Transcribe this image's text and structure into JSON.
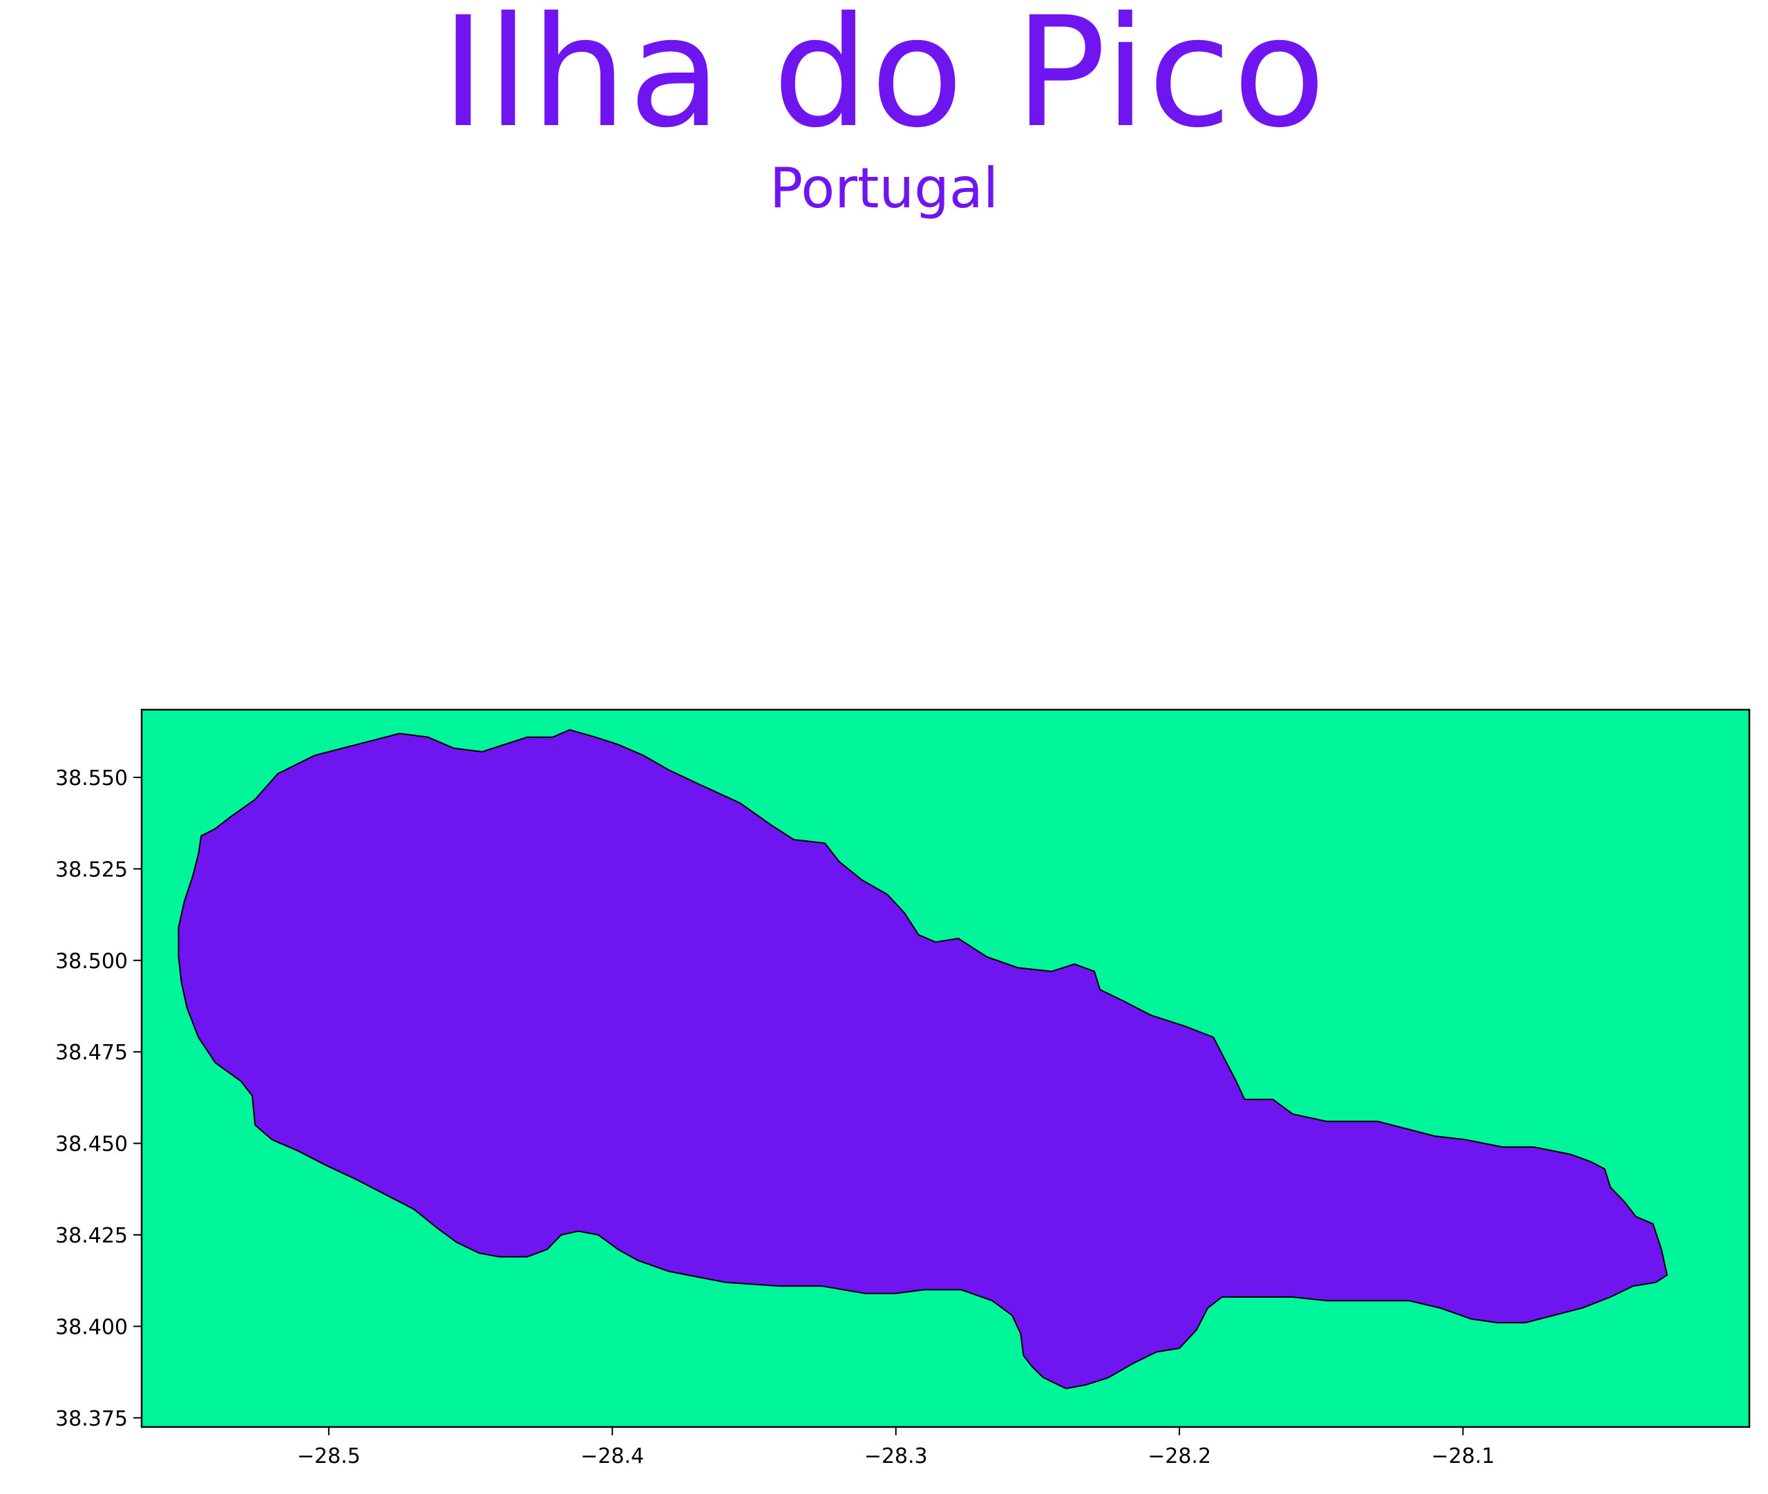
{
  "title": "Ilha do Pico",
  "subtitle": "Portugal",
  "colors": {
    "accent": "#6F16F0",
    "sea": "#00F59B",
    "land": "#6F16F0",
    "outline": "#000000"
  },
  "map": {
    "xlim": [
      -28.566,
      -27.999
    ],
    "ylim": [
      38.3725,
      38.5685
    ],
    "x_ticks": [
      {
        "value": -28.5,
        "label": "−28.5"
      },
      {
        "value": -28.4,
        "label": "−28.4"
      },
      {
        "value": -28.3,
        "label": "−28.3"
      },
      {
        "value": -28.2,
        "label": "−28.2"
      },
      {
        "value": -28.1,
        "label": "−28.1"
      }
    ],
    "y_ticks": [
      {
        "value": 38.55,
        "label": "38.550"
      },
      {
        "value": 38.525,
        "label": "38.525"
      },
      {
        "value": 38.5,
        "label": "38.500"
      },
      {
        "value": 38.475,
        "label": "38.475"
      },
      {
        "value": 38.45,
        "label": "38.450"
      },
      {
        "value": 38.425,
        "label": "38.425"
      },
      {
        "value": 38.4,
        "label": "38.400"
      },
      {
        "value": 38.375,
        "label": "38.375"
      }
    ],
    "island_outline": [
      [
        -28.54,
        38.536
      ],
      [
        -28.535,
        38.539
      ],
      [
        -28.526,
        38.544
      ],
      [
        -28.518,
        38.551
      ],
      [
        -28.505,
        38.556
      ],
      [
        -28.49,
        38.559
      ],
      [
        -28.475,
        38.562
      ],
      [
        -28.465,
        38.561
      ],
      [
        -28.456,
        38.558
      ],
      [
        -28.446,
        38.557
      ],
      [
        -28.438,
        38.559
      ],
      [
        -28.43,
        38.561
      ],
      [
        -28.421,
        38.561
      ],
      [
        -28.415,
        38.563
      ],
      [
        -28.406,
        38.561
      ],
      [
        -28.398,
        38.559
      ],
      [
        -28.389,
        38.556
      ],
      [
        -28.38,
        38.552
      ],
      [
        -28.369,
        38.548
      ],
      [
        -28.355,
        38.543
      ],
      [
        -28.344,
        38.537
      ],
      [
        -28.336,
        38.533
      ],
      [
        -28.325,
        38.532
      ],
      [
        -28.32,
        38.527
      ],
      [
        -28.312,
        38.522
      ],
      [
        -28.303,
        38.518
      ],
      [
        -28.297,
        38.513
      ],
      [
        -28.292,
        38.507
      ],
      [
        -28.286,
        38.505
      ],
      [
        -28.278,
        38.506
      ],
      [
        -28.268,
        38.501
      ],
      [
        -28.257,
        38.498
      ],
      [
        -28.245,
        38.497
      ],
      [
        -28.237,
        38.499
      ],
      [
        -28.23,
        38.497
      ],
      [
        -28.228,
        38.492
      ],
      [
        -28.22,
        38.489
      ],
      [
        -28.21,
        38.485
      ],
      [
        -28.198,
        38.482
      ],
      [
        -28.188,
        38.479
      ],
      [
        -28.184,
        38.473
      ],
      [
        -28.18,
        38.467
      ],
      [
        -28.177,
        38.462
      ],
      [
        -28.167,
        38.462
      ],
      [
        -28.16,
        38.458
      ],
      [
        -28.148,
        38.456
      ],
      [
        -28.14,
        38.456
      ],
      [
        -28.13,
        38.456
      ],
      [
        -28.12,
        38.454
      ],
      [
        -28.11,
        38.452
      ],
      [
        -28.099,
        38.451
      ],
      [
        -28.086,
        38.449
      ],
      [
        -28.075,
        38.449
      ],
      [
        -28.062,
        38.447
      ],
      [
        -28.055,
        38.445
      ],
      [
        -28.05,
        38.443
      ],
      [
        -28.048,
        38.438
      ],
      [
        -28.043,
        38.434
      ],
      [
        -28.039,
        38.43
      ],
      [
        -28.033,
        38.428
      ],
      [
        -28.03,
        38.421
      ],
      [
        -28.028,
        38.414
      ],
      [
        -28.032,
        38.412
      ],
      [
        -28.04,
        38.411
      ],
      [
        -28.048,
        38.408
      ],
      [
        -28.058,
        38.405
      ],
      [
        -28.068,
        38.403
      ],
      [
        -28.078,
        38.401
      ],
      [
        -28.088,
        38.401
      ],
      [
        -28.097,
        38.402
      ],
      [
        -28.108,
        38.405
      ],
      [
        -28.119,
        38.407
      ],
      [
        -28.134,
        38.407
      ],
      [
        -28.148,
        38.407
      ],
      [
        -28.16,
        38.408
      ],
      [
        -28.175,
        38.408
      ],
      [
        -28.185,
        38.408
      ],
      [
        -28.19,
        38.405
      ],
      [
        -28.194,
        38.399
      ],
      [
        -28.2,
        38.394
      ],
      [
        -28.208,
        38.393
      ],
      [
        -28.216,
        38.39
      ],
      [
        -28.225,
        38.386
      ],
      [
        -28.233,
        38.384
      ],
      [
        -28.24,
        38.383
      ],
      [
        -28.248,
        38.386
      ],
      [
        -28.252,
        38.389
      ],
      [
        -28.255,
        38.392
      ],
      [
        -28.256,
        38.398
      ],
      [
        -28.259,
        38.403
      ],
      [
        -28.266,
        38.407
      ],
      [
        -28.277,
        38.41
      ],
      [
        -28.29,
        38.41
      ],
      [
        -28.3,
        38.409
      ],
      [
        -28.311,
        38.409
      ],
      [
        -28.326,
        38.411
      ],
      [
        -28.341,
        38.411
      ],
      [
        -28.36,
        38.412
      ],
      [
        -28.38,
        38.415
      ],
      [
        -28.391,
        38.418
      ],
      [
        -28.398,
        38.421
      ],
      [
        -28.405,
        38.425
      ],
      [
        -28.412,
        38.426
      ],
      [
        -28.418,
        38.425
      ],
      [
        -28.423,
        38.421
      ],
      [
        -28.43,
        38.419
      ],
      [
        -28.44,
        38.419
      ],
      [
        -28.447,
        38.42
      ],
      [
        -28.455,
        38.423
      ],
      [
        -28.462,
        38.427
      ],
      [
        -28.47,
        38.432
      ],
      [
        -28.48,
        38.436
      ],
      [
        -28.49,
        38.44
      ],
      [
        -28.501,
        38.444
      ],
      [
        -28.511,
        38.448
      ],
      [
        -28.52,
        38.451
      ],
      [
        -28.526,
        38.455
      ],
      [
        -28.527,
        38.463
      ],
      [
        -28.531,
        38.467
      ],
      [
        -28.54,
        38.472
      ],
      [
        -28.546,
        38.479
      ],
      [
        -28.55,
        38.487
      ],
      [
        -28.552,
        38.494
      ],
      [
        -28.553,
        38.501
      ],
      [
        -28.553,
        38.509
      ],
      [
        -28.551,
        38.516
      ],
      [
        -28.548,
        38.523
      ],
      [
        -28.546,
        38.529
      ],
      [
        -28.545,
        38.534
      ]
    ]
  }
}
